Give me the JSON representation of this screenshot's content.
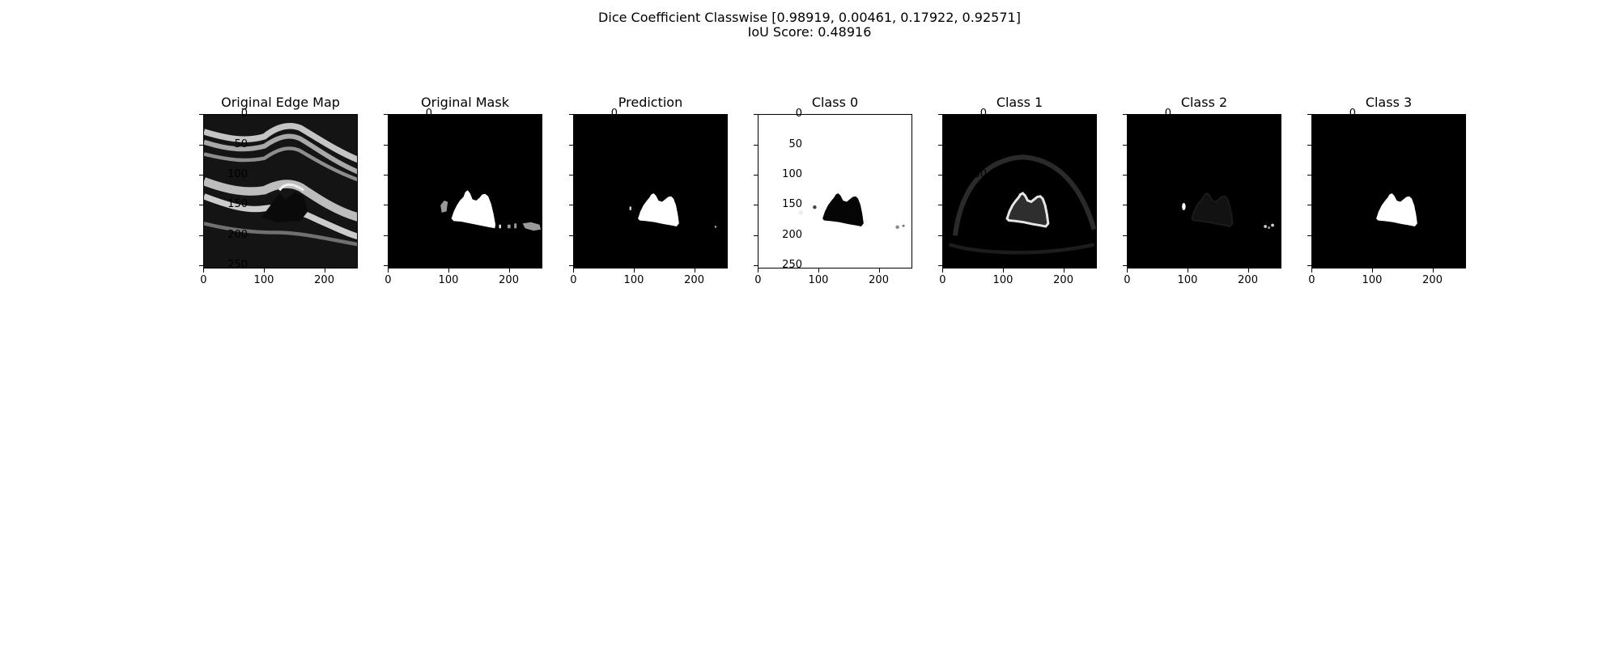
{
  "figure": {
    "suptitle_line1": "Dice Coefficient Classwise [0.98919, 0.00461, 0.17922, 0.92571]",
    "suptitle_line2": "IoU Score: 0.48916"
  },
  "axes": {
    "x_ticks": [
      "0",
      "100",
      "200"
    ],
    "y_ticks": [
      "0",
      "50",
      "100",
      "150",
      "200",
      "250"
    ],
    "x_tick_values": [
      0,
      100,
      200
    ],
    "y_tick_values": [
      0,
      50,
      100,
      150,
      200,
      250
    ],
    "range": [
      0,
      256
    ]
  },
  "panels": [
    {
      "title": "Original Edge Map",
      "name": "original-edge-map",
      "style": "edge",
      "colormap": "gray"
    },
    {
      "title": "Original Mask",
      "name": "original-mask",
      "style": "mask",
      "colormap": "gray"
    },
    {
      "title": "Prediction",
      "name": "prediction",
      "style": "pred",
      "colormap": "gray"
    },
    {
      "title": "Class 0",
      "name": "class-0",
      "style": "class0",
      "colormap": "gray"
    },
    {
      "title": "Class 1",
      "name": "class-1",
      "style": "class1",
      "colormap": "gray"
    },
    {
      "title": "Class 2",
      "name": "class-2",
      "style": "class2",
      "colormap": "gray"
    },
    {
      "title": "Class 3",
      "name": "class-3",
      "style": "class3",
      "colormap": "gray"
    }
  ]
}
